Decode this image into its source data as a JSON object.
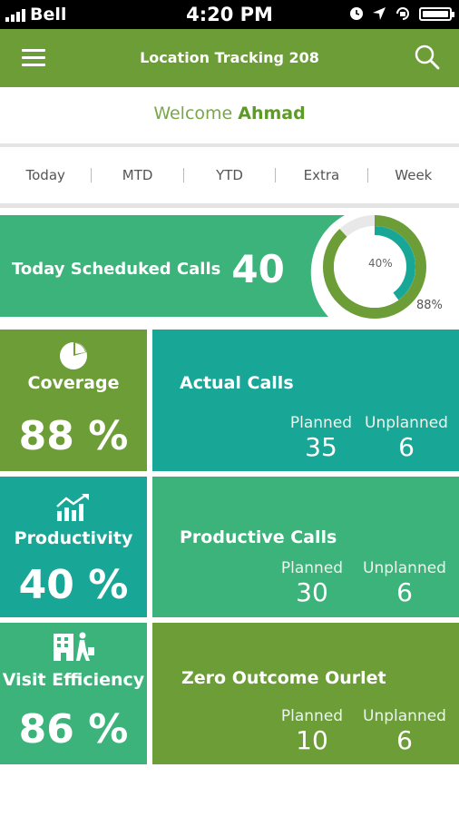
{
  "status_bar": {
    "carrier": "Bell",
    "time": "4:20 PM"
  },
  "app_bar": {
    "title": "Location Tracking 208"
  },
  "welcome": {
    "greeting": "Welcome",
    "name": "Ahmad"
  },
  "tabs": [
    "Today",
    "MTD",
    "YTD",
    "Extra",
    "Week"
  ],
  "banner": {
    "label": "Today Scheduked Calls",
    "value": "40",
    "donut": {
      "inner_label": "40%",
      "outer_label": "88%",
      "inner_percent": 40,
      "outer_percent": 88
    }
  },
  "kpis": [
    {
      "label": "Coverage",
      "value": "88 %",
      "icon": "pie-chart-icon"
    },
    {
      "label": "Productivity",
      "value": "40 %",
      "icon": "growth-chart-icon"
    },
    {
      "label": "Visit Efficiency",
      "value": "86 %",
      "icon": "building-walker-icon"
    }
  ],
  "details": [
    {
      "title": "Actual Calls",
      "planned_label": "Planned",
      "unplanned_label": "Unplanned",
      "planned": "35",
      "unplanned": "6"
    },
    {
      "title": "Productive Calls",
      "planned_label": "Planned",
      "unplanned_label": "Unplanned",
      "planned": "30",
      "unplanned": "6"
    },
    {
      "title": "Zero Outcome Ourlet",
      "planned_label": "Planned",
      "unplanned_label": "Unplanned",
      "planned": "10",
      "unplanned": "6"
    }
  ],
  "colors": {
    "olive": "#6c9d37",
    "green": "#3bb37a",
    "teal": "#18a697"
  }
}
